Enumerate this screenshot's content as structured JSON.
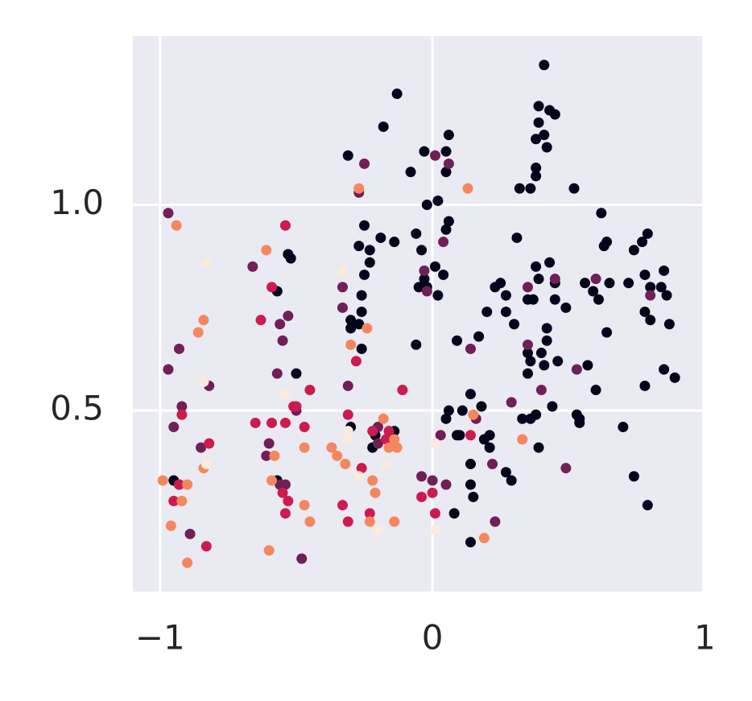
{
  "chart_data": {
    "type": "scatter",
    "xlim": [
      -1.1,
      0.99
    ],
    "ylim": [
      0.06,
      1.41
    ],
    "xticks": [
      {
        "value": -1,
        "label": "−1"
      },
      0,
      1
    ],
    "yticks": [
      0.5,
      {
        "value": 1,
        "label": "1.0"
      }
    ],
    "grid": true,
    "series": [
      {
        "color": "#03051a",
        "x": [
          0.41,
          -0.13,
          -0.18,
          0.39,
          0.43,
          0.45,
          0.39,
          0.41,
          0.38,
          0.42,
          0.38,
          0.38,
          0.32,
          0.36,
          0.52,
          -0.31,
          -0.08,
          -0.03,
          0.06,
          0.05,
          0.05,
          -0.02,
          0.02,
          -0.25,
          -0.19,
          -0.14,
          -0.27,
          -0.23,
          -0.23,
          -0.06,
          -0.04,
          0.06,
          0.05,
          -0.53,
          -0.52,
          -0.57,
          -0.25,
          -0.26,
          -0.26,
          -0.3,
          -0.27,
          -0.3,
          -0.26,
          0.01,
          -0.03,
          -0.05,
          -0.02,
          0.04,
          0.02,
          -0.06,
          0.09,
          0.17,
          0.31,
          0.62,
          0.63,
          0.64,
          0.38,
          0.43,
          0.39,
          0.45,
          0.23,
          0.25,
          0.27,
          0.2,
          0.27,
          0.3,
          0.35,
          0.37,
          0.45,
          0.49,
          0.56,
          0.59,
          0.61,
          0.65,
          0.72,
          0.78,
          0.8,
          0.74,
          0.77,
          0.79,
          0.85,
          0.84,
          0.86,
          0.78,
          0.8,
          0.87,
          0.42,
          0.42,
          0.35,
          0.36,
          0.35,
          0.4,
          0.41,
          0.46,
          0.64,
          0.57,
          0.6,
          0.78,
          0.85,
          0.89,
          0.53,
          0.54,
          0.54,
          0.44,
          0.33,
          0.36,
          0.38,
          0.39,
          0.7,
          0.74,
          0.79,
          0.14,
          0.18,
          0.11,
          0.06,
          0.05,
          0.21,
          0.21,
          0.19,
          0.1,
          0.09,
          0.14,
          0.14,
          0.15,
          0.08,
          0.27,
          0.29,
          0.14,
          -0.14,
          -0.21,
          -0.22,
          -0.5,
          -0.95,
          -0.57,
          -0.3
        ],
        "y": [
          1.34,
          1.27,
          1.19,
          1.24,
          1.23,
          1.22,
          1.2,
          1.17,
          1.16,
          1.14,
          1.09,
          1.07,
          1.04,
          1.04,
          1.04,
          1.12,
          1.08,
          1.13,
          1.17,
          1.13,
          1.08,
          1.0,
          1.01,
          0.95,
          0.92,
          0.91,
          0.9,
          0.89,
          0.86,
          0.93,
          0.89,
          0.96,
          0.94,
          0.88,
          0.87,
          0.79,
          0.83,
          0.78,
          0.74,
          0.72,
          0.71,
          0.7,
          0.65,
          0.85,
          0.82,
          0.8,
          0.8,
          0.83,
          0.78,
          0.66,
          0.67,
          0.68,
          0.92,
          0.98,
          0.9,
          0.91,
          0.85,
          0.86,
          0.82,
          0.81,
          0.8,
          0.81,
          0.78,
          0.74,
          0.74,
          0.71,
          0.77,
          0.77,
          0.77,
          0.75,
          0.81,
          0.79,
          0.77,
          0.81,
          0.81,
          0.83,
          0.8,
          0.89,
          0.91,
          0.93,
          0.84,
          0.8,
          0.78,
          0.74,
          0.72,
          0.71,
          0.7,
          0.67,
          0.64,
          0.62,
          0.59,
          0.64,
          0.61,
          0.62,
          0.69,
          0.61,
          0.55,
          0.56,
          0.6,
          0.58,
          0.49,
          0.48,
          0.47,
          0.51,
          0.48,
          0.48,
          0.49,
          0.41,
          0.46,
          0.34,
          0.27,
          0.54,
          0.51,
          0.5,
          0.5,
          0.48,
          0.44,
          0.41,
          0.43,
          0.44,
          0.44,
          0.37,
          0.32,
          0.29,
          0.25,
          0.35,
          0.33,
          0.18,
          0.45,
          0.44,
          0.41,
          0.59,
          0.33,
          0.33,
          0.46
        ]
      },
      {
        "color": "#701f57",
        "x": [
          -0.97,
          -0.93,
          -0.97,
          -0.92,
          -0.95,
          -0.82,
          -0.85,
          -0.89,
          -0.93,
          -0.66,
          -0.53,
          -0.56,
          -0.55,
          -0.57,
          -0.6,
          -0.61,
          -0.56,
          -0.54,
          -0.48,
          -0.5,
          -0.25,
          -0.27,
          -0.33,
          -0.33,
          -0.31,
          -0.2,
          -0.2,
          0.01,
          0.06,
          0.04,
          -0.03,
          -0.02,
          -0.04,
          0,
          0.05,
          0.03,
          0.35,
          0.35,
          0.14,
          0.29,
          0.4,
          0.45,
          0.6,
          0.8,
          0.53,
          0.49,
          0.23,
          0.22,
          0.16
        ],
        "y": [
          0.98,
          0.65,
          0.6,
          0.51,
          0.46,
          0.56,
          0.41,
          0.2,
          0.32,
          0.85,
          0.73,
          0.71,
          0.67,
          0.59,
          0.42,
          0.39,
          0.32,
          0.32,
          0.14,
          0.5,
          1.1,
          1.03,
          0.8,
          0.75,
          0.56,
          0.46,
          0.42,
          1.12,
          1.1,
          0.91,
          0.84,
          0.79,
          0.34,
          0.33,
          0.32,
          0.44,
          0.8,
          0.66,
          0.65,
          0.52,
          0.55,
          0.82,
          0.82,
          0.78,
          0.6,
          0.36,
          0.23,
          0.37,
          0.48
        ]
      },
      {
        "color": "#cb1b4f",
        "x": [
          -0.54,
          -0.59,
          -0.63,
          -0.92,
          -0.95,
          -0.93,
          -0.82,
          -0.83,
          -0.51,
          -0.45,
          -0.65,
          -0.59,
          -0.54,
          -0.47,
          -0.55,
          -0.53,
          -0.54,
          -0.5,
          -0.28,
          -0.31,
          -0.33,
          -0.31,
          -0.23,
          -0.26,
          -0.22,
          -0.17,
          -0.16,
          -0.11,
          -0.04,
          0,
          0.01,
          0.14
        ],
        "y": [
          0.95,
          0.8,
          0.72,
          0.49,
          0.28,
          0.32,
          0.42,
          0.17,
          0.51,
          0.55,
          0.47,
          0.47,
          0.47,
          0.46,
          0.3,
          0.28,
          0.25,
          0.51,
          0.62,
          0.49,
          0.27,
          0.23,
          0.25,
          0.36,
          0.45,
          0.43,
          0.45,
          0.55,
          0.29,
          0.3,
          0.25,
          0.44
        ]
      },
      {
        "color": "#f4875e",
        "x": [
          -0.94,
          -0.84,
          -0.86,
          -0.99,
          -0.92,
          -0.9,
          -0.96,
          -0.9,
          -0.84,
          -0.61,
          -0.6,
          -0.59,
          -0.47,
          -0.47,
          -0.45,
          -0.58,
          -0.27,
          -0.24,
          -0.3,
          -0.37,
          -0.35,
          -0.32,
          -0.22,
          -0.21,
          -0.23,
          -0.18,
          -0.14,
          -0.13,
          -0.16,
          -0.14,
          0.13,
          0.15,
          0.33,
          0.19
        ],
        "y": [
          0.95,
          0.72,
          0.69,
          0.33,
          0.28,
          0.32,
          0.22,
          0.13,
          0.36,
          0.89,
          0.16,
          0.33,
          0.41,
          0.27,
          0.23,
          0.39,
          1.04,
          0.7,
          0.66,
          0.41,
          0.39,
          0.37,
          0.33,
          0.3,
          0.23,
          0.48,
          0.43,
          0.41,
          0.41,
          0.23,
          1.04,
          0.49,
          0.43,
          0.19
        ]
      },
      {
        "color": "#faebdd",
        "x": [
          -0.83,
          -0.84,
          -0.83,
          -0.33,
          -0.54,
          -0.31,
          -0.31,
          -0.27,
          -0.2,
          -0.17,
          0.01,
          0.01
        ],
        "y": [
          0.86,
          0.57,
          0.37,
          0.84,
          0.54,
          0.45,
          0.43,
          0.34,
          0.21,
          0.37,
          0.42,
          0.21
        ]
      }
    ]
  }
}
